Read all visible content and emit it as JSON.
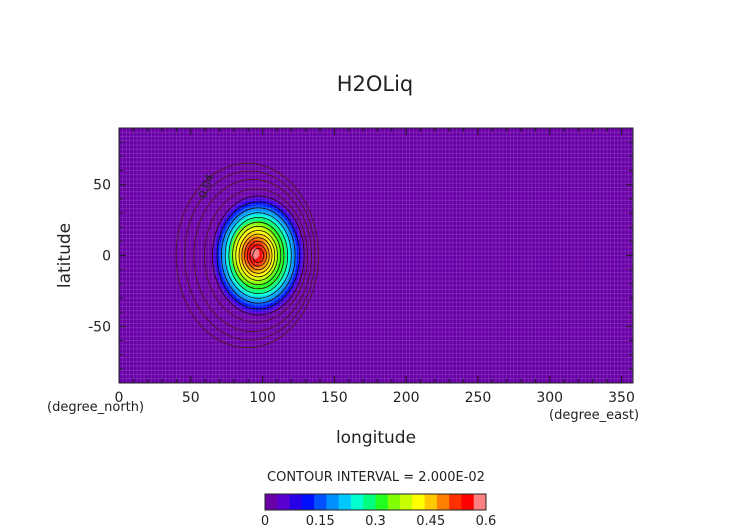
{
  "chart_data": {
    "type": "heatmap",
    "title": "H2OLiq",
    "xlabel": "longitude",
    "ylabel": "latitude",
    "x_unit": "(degree_east)",
    "y_unit": "(degree_north)",
    "xlim": [
      0,
      358
    ],
    "ylim": [
      -90,
      90
    ],
    "x_ticks": [
      0,
      50,
      100,
      150,
      200,
      250,
      300,
      350
    ],
    "y_ticks": [
      -50,
      0,
      50
    ],
    "grid": true,
    "contour_interval_text": "CONTOUR INTERVAL = 2.000E-02",
    "contour_interval": 0.02,
    "contour_label": "0.04",
    "colorbar": {
      "min": 0,
      "max": 0.6,
      "tick_values": [
        0,
        0.15,
        0.3,
        0.45,
        0.6
      ],
      "tick_labels": [
        "0",
        "0.15",
        "0.3",
        "0.45",
        "0.6"
      ],
      "colors": [
        "#6a00a8",
        "#5a00d0",
        "#2a00e8",
        "#0010ff",
        "#0050ff",
        "#0090ff",
        "#00c8ff",
        "#00ffd0",
        "#00ff80",
        "#20ff20",
        "#80ff00",
        "#c8ff00",
        "#ffff00",
        "#ffc800",
        "#ff8000",
        "#ff3000",
        "#ff0000",
        "#ff8080"
      ]
    },
    "field": {
      "center_lon": 97,
      "center_lat": 0,
      "peak_value": 0.6,
      "background_value": 0,
      "zero_contour_radius_lon": 32,
      "zero_contour_radius_lat": 42
    }
  }
}
